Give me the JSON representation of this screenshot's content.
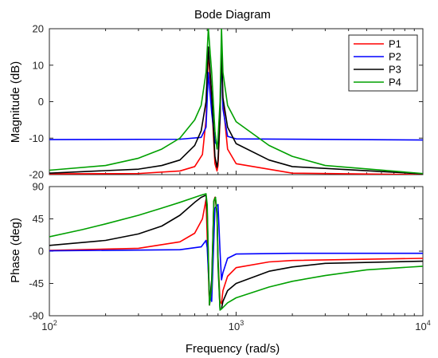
{
  "chart_data": {
    "type": "line",
    "title": "Bode Diagram",
    "xlabel": "Frequency  (rad/s)",
    "xscale": "log",
    "xlim": [
      100,
      10000
    ],
    "xticks": [
      {
        "value": 100,
        "base": "10",
        "exp": "2"
      },
      {
        "value": 1000,
        "base": "10",
        "exp": "3"
      },
      {
        "value": 10000,
        "base": "10",
        "exp": "4"
      }
    ],
    "legend_placement": "top-right",
    "colors": {
      "P1": "#ff0000",
      "P2": "#0000ff",
      "P3": "#000000",
      "P4": "#00a000"
    },
    "panels": [
      {
        "name": "magnitude",
        "ylabel": "Magnitude (dB)",
        "ylim": [
          -20,
          20
        ],
        "yticks": [
          "-20",
          "-10",
          "0",
          "10",
          "20"
        ],
        "series": [
          {
            "name": "P1",
            "x": [
              100,
              300,
              500,
              600,
              660,
              690,
              710,
              740,
              770,
              790,
              800,
              820,
              835,
              850,
              900,
              1000,
              2000,
              10000
            ],
            "y": [
              -19.8,
              -19.7,
              -19.0,
              -17.8,
              -14.5,
              -5,
              14,
              0,
              -17,
              -19,
              -17.5,
              -5,
              14,
              0,
              -13,
              -17,
              -19.6,
              -20
            ]
          },
          {
            "name": "P2",
            "x": [
              100,
              500,
              650,
              690,
              710,
              740,
              770,
              790,
              800,
              820,
              835,
              850,
              900,
              1000,
              10000
            ],
            "y": [
              -10.4,
              -10.3,
              -9.8,
              -7,
              8,
              -3,
              -11,
              -12,
              -11,
              -5,
              14,
              -2,
              -9.5,
              -10.2,
              -10.5
            ]
          },
          {
            "name": "P3",
            "x": [
              100,
              300,
              400,
              500,
              600,
              650,
              690,
              710,
              740,
              770,
              790,
              800,
              820,
              835,
              850,
              900,
              1000,
              1500,
              2000,
              10000
            ],
            "y": [
              -19.6,
              -18.5,
              -17.5,
              -16,
              -12,
              -8,
              0,
              15,
              2,
              -15,
              -18,
              -16,
              -4,
              15,
              1,
              -7,
              -11.5,
              -16,
              -17.8,
              -19.8
            ]
          },
          {
            "name": "P4",
            "x": [
              100,
              200,
              300,
              400,
              500,
              600,
              650,
              690,
              710,
              740,
              770,
              790,
              800,
              820,
              835,
              850,
              900,
              1000,
              1500,
              2000,
              3000,
              10000
            ],
            "y": [
              -18.8,
              -17.5,
              -15.5,
              -13,
              -10,
              -5,
              -1,
              8,
              20,
              8,
              -8,
              -13,
              -10,
              0,
              20,
              8,
              -1,
              -5.5,
              -12,
              -15,
              -17.5,
              -19.7
            ]
          }
        ]
      },
      {
        "name": "phase",
        "ylabel": "Phase (deg)",
        "ylim": [
          -90,
          90
        ],
        "yticks": [
          "-90",
          "-45",
          "0",
          "45",
          "90"
        ],
        "series": [
          {
            "name": "P1",
            "x": [
              100,
              300,
              500,
              600,
              660,
              690,
              700,
              720,
              740,
              760,
              770,
              790,
              800,
              820,
              835,
              850,
              900,
              1000,
              1500,
              2000,
              10000
            ],
            "y": [
              1,
              4,
              13,
              25,
              45,
              72,
              20,
              -75,
              -55,
              70,
              75,
              55,
              -10,
              -70,
              -73,
              -55,
              -35,
              -23,
              -15,
              -13,
              -10
            ]
          },
          {
            "name": "P2",
            "x": [
              100,
              500,
              650,
              690,
              700,
              720,
              740,
              770,
              800,
              820,
              835,
              850,
              900,
              1000,
              2000,
              10000
            ],
            "y": [
              0.5,
              2,
              6,
              15,
              5,
              -60,
              -70,
              60,
              65,
              0,
              -40,
              -30,
              -10,
              -4,
              -3,
              -3
            ]
          },
          {
            "name": "P3",
            "x": [
              100,
              200,
              300,
              400,
              500,
              600,
              650,
              690,
              700,
              720,
              740,
              760,
              775,
              790,
              800,
              820,
              835,
              850,
              900,
              1000,
              1500,
              2000,
              3000,
              10000
            ],
            "y": [
              8,
              15,
              24,
              35,
              50,
              68,
              75,
              78,
              55,
              -75,
              -40,
              70,
              75,
              50,
              -20,
              -82,
              -80,
              -70,
              -55,
              -45,
              -28,
              -22,
              -17,
              -14
            ]
          },
          {
            "name": "P4",
            "x": [
              100,
              150,
              200,
              300,
              400,
              500,
              600,
              650,
              690,
              700,
              720,
              740,
              760,
              775,
              790,
              800,
              820,
              840,
              900,
              1000,
              1500,
              2000,
              3000,
              5000,
              10000
            ],
            "y": [
              20,
              30,
              38,
              50,
              60,
              68,
              75,
              78,
              80,
              65,
              -75,
              -50,
              70,
              75,
              55,
              -10,
              -82,
              -80,
              -72,
              -65,
              -50,
              -42,
              -34,
              -26,
              -21
            ]
          }
        ]
      }
    ]
  }
}
